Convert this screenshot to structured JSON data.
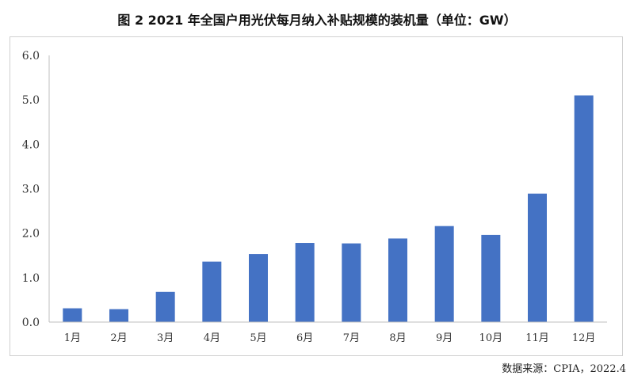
{
  "title": "图 2 2021 年全国户用光伏每月纳入补贴规模的装机量（单位：GW）",
  "source": "数据来源：CPIA，2022.4",
  "chart_data": {
    "type": "bar",
    "categories": [
      "1月",
      "2月",
      "3月",
      "4月",
      "5月",
      "6月",
      "7月",
      "8月",
      "9月",
      "10月",
      "11月",
      "12月"
    ],
    "values": [
      0.31,
      0.29,
      0.68,
      1.36,
      1.53,
      1.78,
      1.77,
      1.88,
      2.16,
      1.96,
      2.89,
      5.1
    ],
    "ylim": [
      0,
      6
    ],
    "yticks": [
      "0.0",
      "1.0",
      "2.0",
      "3.0",
      "4.0",
      "5.0",
      "6.0"
    ],
    "grid": false,
    "legend": "none",
    "bar_color": "#4472C4",
    "axis_color": "#bfbfbf"
  }
}
